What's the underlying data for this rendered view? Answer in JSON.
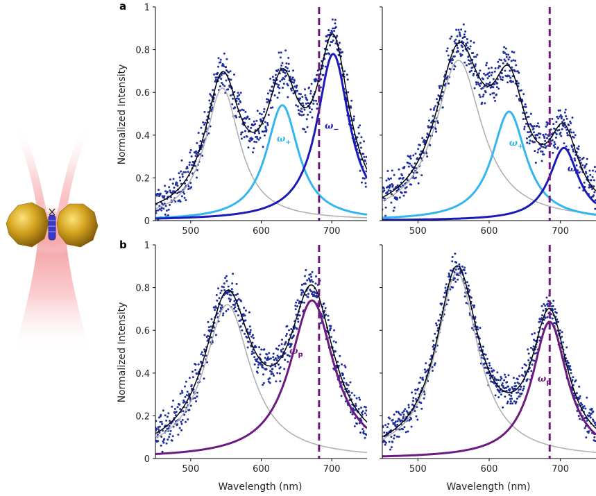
{
  "chart_data": [
    {
      "panel": "a",
      "position": "top-left",
      "type": "line",
      "xlabel": "",
      "ylabel": "Normalized Intensity",
      "xlim": [
        450,
        750
      ],
      "ylim": [
        0,
        1
      ],
      "xticks": [
        "500",
        "600",
        "700"
      ],
      "yticks": [
        "0",
        "0.2",
        "0.4",
        "0.6",
        "0.8",
        "1"
      ],
      "dashed_line_x": 682,
      "peaks": [
        {
          "name": "uncoupled",
          "center": 545,
          "amp": 0.62,
          "hwhm": 30,
          "color": "#b0b0b0"
        },
        {
          "name": "ω+",
          "center": 630,
          "amp": 0.54,
          "hwhm": 28,
          "color": "#33b5ef"
        },
        {
          "name": "ω-",
          "center": 702,
          "amp": 0.78,
          "hwhm": 28,
          "color": "#1a1ab8"
        }
      ],
      "fit_color": "#000000",
      "data_color": "#1f2f9c",
      "noise": 0.07,
      "annotations": [
        {
          "text": "ω",
          "sub": "+",
          "x": 622,
          "y": 0.37,
          "color": "#33b5ef"
        },
        {
          "text": "ω",
          "sub": "−",
          "x": 690,
          "y": 0.43,
          "color": "#1a1ab8"
        }
      ]
    },
    {
      "panel": "a",
      "position": "top-right",
      "type": "line",
      "xlabel": "",
      "ylabel": "",
      "xlim": [
        450,
        750
      ],
      "ylim": [
        0,
        1
      ],
      "xticks": [
        "500",
        "600",
        "700"
      ],
      "yticks": [],
      "dashed_line_x": 685,
      "peaks": [
        {
          "name": "uncoupled",
          "center": 557,
          "amp": 0.75,
          "hwhm": 40,
          "color": "#b0b0b0"
        },
        {
          "name": "ω+",
          "center": 628,
          "amp": 0.51,
          "hwhm": 29,
          "color": "#33b5ef"
        },
        {
          "name": "ω-",
          "center": 705,
          "amp": 0.34,
          "hwhm": 25,
          "color": "#1a1ab8"
        }
      ],
      "fit_color": "#000000",
      "data_color": "#1f2f9c",
      "noise": 0.07,
      "annotations": [
        {
          "text": "ω",
          "sub": "+",
          "x": 628,
          "y": 0.35,
          "color": "#33b5ef"
        },
        {
          "text": "ω",
          "sub": "−",
          "x": 710,
          "y": 0.23,
          "color": "#1a1ab8"
        }
      ]
    },
    {
      "panel": "b",
      "position": "bottom-left",
      "type": "line",
      "xlabel": "Wavelength (nm)",
      "ylabel": "Normalized Intensity",
      "xlim": [
        450,
        750
      ],
      "ylim": [
        0,
        1
      ],
      "xticks": [
        "500",
        "600",
        "700"
      ],
      "yticks": [
        "0",
        "0.2",
        "0.4",
        "0.6",
        "0.8",
        "1"
      ],
      "dashed_line_x": 682,
      "peaks": [
        {
          "name": "uncoupled",
          "center": 552,
          "amp": 0.72,
          "hwhm": 40,
          "color": "#b0b0b0"
        },
        {
          "name": "ωp",
          "center": 672,
          "amp": 0.74,
          "hwhm": 38,
          "color": "#6d1a80"
        }
      ],
      "fit_color": "#000000",
      "data_color": "#1f2f9c",
      "noise": 0.07,
      "annotations": [
        {
          "text": "ω",
          "sub": "p",
          "x": 640,
          "y": 0.49,
          "color": "#6d1a80"
        }
      ]
    },
    {
      "panel": "b",
      "position": "bottom-right",
      "type": "line",
      "xlabel": "Wavelength (nm)",
      "ylabel": "",
      "xlim": [
        450,
        750
      ],
      "ylim": [
        0,
        1
      ],
      "xticks": [
        "500",
        "600",
        "700"
      ],
      "yticks": [],
      "dashed_line_x": 685,
      "peaks": [
        {
          "name": "uncoupled",
          "center": 555,
          "amp": 0.87,
          "hwhm": 36,
          "color": "#b0b0b0"
        },
        {
          "name": "ωp",
          "center": 685,
          "amp": 0.64,
          "hwhm": 30,
          "color": "#6d1a80"
        }
      ],
      "fit_color": "#000000",
      "data_color": "#1f2f9c",
      "noise": 0.06,
      "annotations": [
        {
          "text": "ω",
          "sub": "p",
          "x": 668,
          "y": 0.36,
          "color": "#6d1a80"
        }
      ]
    }
  ],
  "labels": {
    "panel_a": "a",
    "panel_b": "b",
    "ylabel": "Normalized Intensity",
    "xlabel": "Wavelength (nm)"
  },
  "colors": {
    "gold": "#c79a1c",
    "laser": "#f4a3a6",
    "molecule": "#3a3ac8",
    "dashed": "#6d1a80"
  },
  "icons": {
    "illustration": "gold-nanoparticle-dimer-with-molecule-in-laser-beam"
  }
}
